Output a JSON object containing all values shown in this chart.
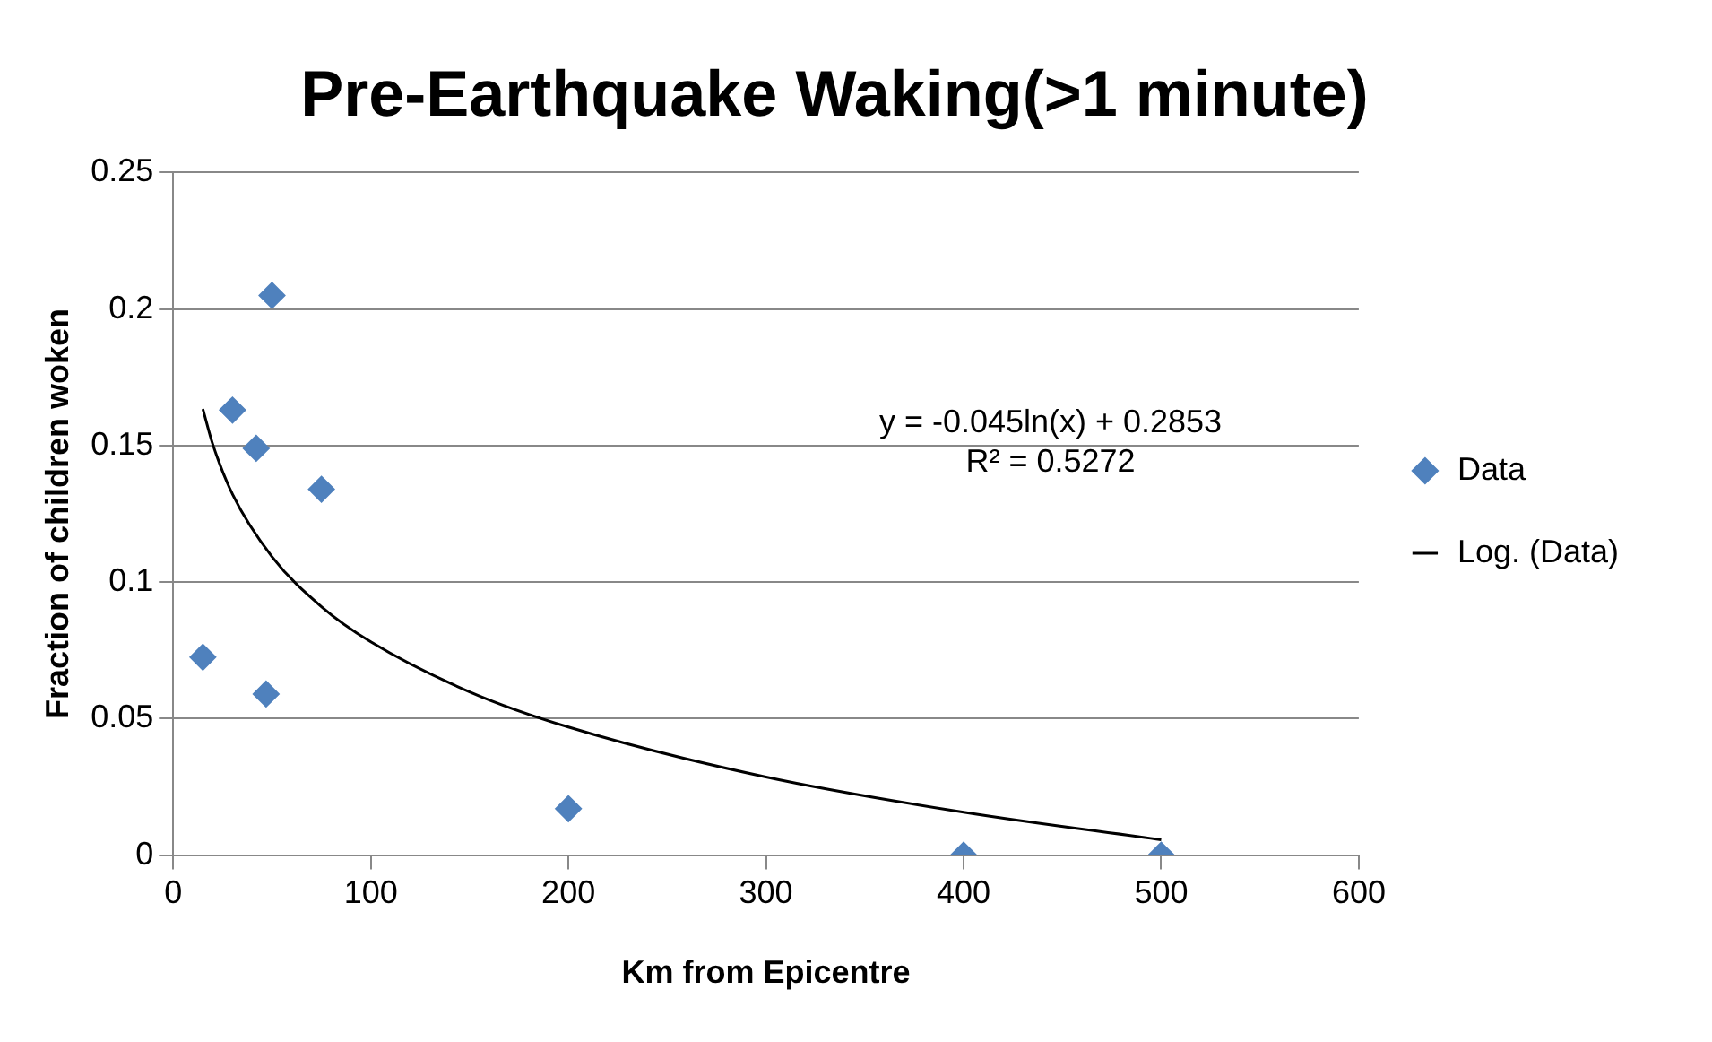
{
  "chart_data": {
    "type": "scatter",
    "title": "Pre-Earthquake Waking(>1 minute)",
    "xlabel": "Km from Epicentre",
    "ylabel": "Fraction of children woken",
    "series": [
      {
        "name": "Data",
        "type": "scatter",
        "color": "#4f81bd",
        "marker": "diamond",
        "x": [
          15,
          30,
          50,
          42,
          47,
          75,
          200,
          400,
          500
        ],
        "values": [
          0.0725,
          0.163,
          0.205,
          0.149,
          0.059,
          0.134,
          0.017,
          0,
          0
        ]
      },
      {
        "name": "Log. (Data)",
        "type": "line",
        "color": "#000000",
        "marker": "none",
        "line_style": "solid",
        "x": [
          15,
          20,
          30,
          50,
          75,
          100,
          150,
          200,
          300,
          400,
          500
        ],
        "values": [
          0.1634,
          0.1505,
          0.1322,
          0.1093,
          0.091,
          0.0781,
          0.0598,
          0.0469,
          0.0286,
          0.0157,
          0.0056
        ]
      }
    ],
    "annotations": [
      "y = -0.045ln(x) + 0.2853",
      "R² = 0.5272"
    ],
    "xlim": [
      0,
      600
    ],
    "xticks": [
      0,
      100,
      200,
      300,
      400,
      500,
      600
    ],
    "ylim": [
      0,
      0.25
    ],
    "yticks": [
      0,
      0.05,
      0.1,
      0.15,
      0.2,
      0.25
    ],
    "grid": "y",
    "legend": "right"
  }
}
